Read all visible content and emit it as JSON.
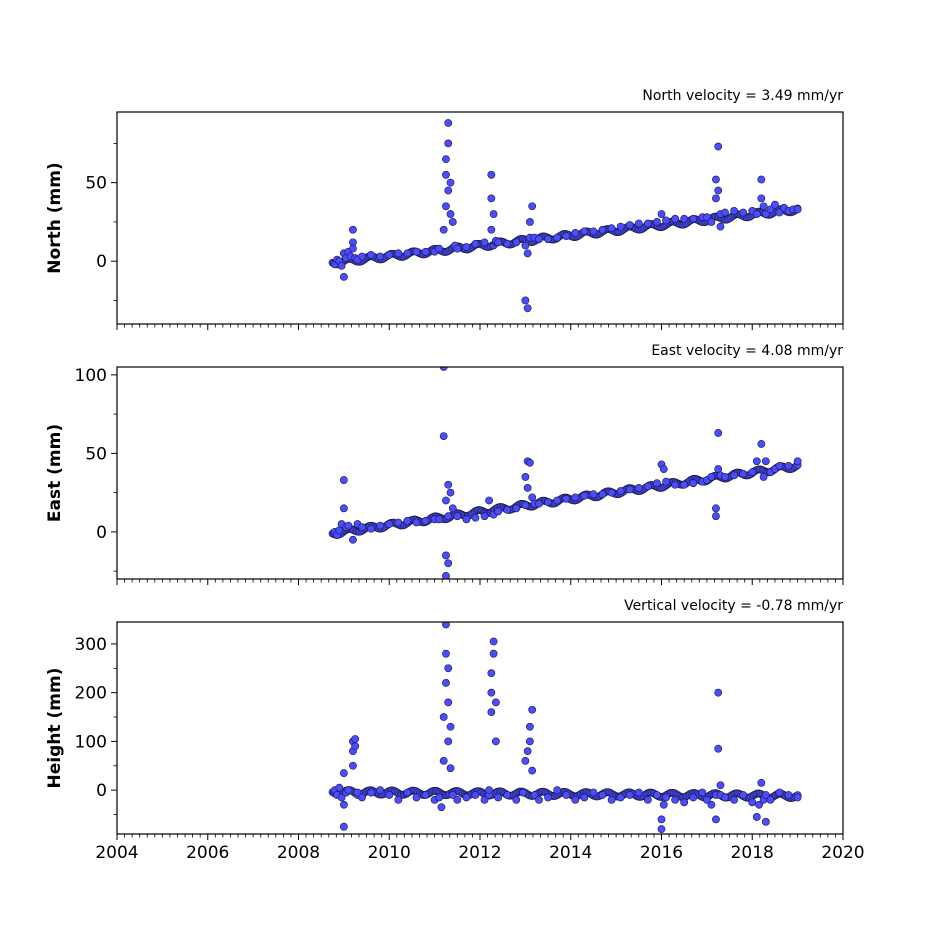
{
  "chart_data": [
    {
      "type": "scatter",
      "subtitle": "North velocity = 3.49 mm/yr",
      "ylabel": "North (mm)",
      "xlim": [
        2004,
        2020
      ],
      "ylim": [
        -40,
        95
      ],
      "yticks": [
        0,
        50
      ],
      "xticks": [
        2004,
        2006,
        2008,
        2010,
        2012,
        2014,
        2016,
        2018,
        2020
      ],
      "show_xtick_labels": false,
      "series": [
        {
          "color": "#4b4bff",
          "edge_color": "#1a1a40",
          "trend": {
            "x": [
              2008.75,
              2019.0
            ],
            "y": [
              -1,
              33
            ]
          },
          "x": [
            2008.8,
            2008.85,
            2008.9,
            2008.95,
            2009.0,
            2009.0,
            2009.05,
            2009.1,
            2009.15,
            2009.2,
            2009.2,
            2009.2,
            2009.25,
            2009.3,
            2009.4,
            2009.6,
            2009.8,
            2010.0,
            2010.2,
            2010.4,
            2010.6,
            2010.8,
            2011.0,
            2011.1,
            2011.2,
            2011.25,
            2011.25,
            2011.25,
            2011.3,
            2011.3,
            2011.3,
            2011.35,
            2011.35,
            2011.4,
            2011.45,
            2011.5,
            2011.7,
            2011.9,
            2012.1,
            2012.25,
            2012.25,
            2012.25,
            2012.3,
            2012.3,
            2012.35,
            2012.35,
            2012.4,
            2012.6,
            2012.8,
            2013.0,
            2013.0,
            2013.05,
            2013.05,
            2013.1,
            2013.1,
            2013.15,
            2013.2,
            2013.3,
            2013.5,
            2013.7,
            2013.9,
            2014.1,
            2014.3,
            2014.5,
            2014.7,
            2014.9,
            2015.1,
            2015.3,
            2015.5,
            2015.7,
            2015.9,
            2016.0,
            2016.1,
            2016.3,
            2016.5,
            2016.7,
            2016.9,
            2017.0,
            2017.1,
            2017.2,
            2017.2,
            2017.25,
            2017.25,
            2017.3,
            2017.3,
            2017.4,
            2017.6,
            2017.8,
            2018.0,
            2018.1,
            2018.2,
            2018.2,
            2018.25,
            2018.3,
            2018.4,
            2018.5,
            2018.6,
            2018.7,
            2018.8,
            2018.9,
            2019.0
          ],
          "y": [
            -2,
            1,
            0,
            -3,
            5,
            -10,
            2,
            6,
            3,
            12,
            20,
            8,
            2,
            1,
            3,
            4,
            3,
            4,
            5,
            5,
            6,
            6,
            6,
            8,
            20,
            35,
            55,
            65,
            88,
            75,
            45,
            30,
            50,
            25,
            10,
            8,
            9,
            11,
            12,
            20,
            40,
            55,
            30,
            10,
            12,
            13,
            12,
            11,
            12,
            10,
            -25,
            -30,
            5,
            15,
            25,
            35,
            15,
            14,
            14,
            15,
            16,
            18,
            19,
            19,
            20,
            21,
            22,
            23,
            24,
            24,
            25,
            30,
            26,
            27,
            27,
            27,
            28,
            28,
            25,
            52,
            40,
            73,
            45,
            30,
            22,
            31,
            32,
            31,
            32,
            30,
            52,
            40,
            35,
            30,
            33,
            36,
            31,
            34,
            32,
            33,
            33
          ]
        }
      ]
    },
    {
      "type": "scatter",
      "subtitle": "East velocity = 4.08 mm/yr",
      "ylabel": "East (mm)",
      "xlim": [
        2004,
        2020
      ],
      "ylim": [
        -30,
        105
      ],
      "yticks": [
        0,
        50,
        100
      ],
      "xticks": [
        2004,
        2006,
        2008,
        2010,
        2012,
        2014,
        2016,
        2018,
        2020
      ],
      "show_xtick_labels": false,
      "series": [
        {
          "color": "#4b4bff",
          "edge_color": "#1a1a40",
          "trend": {
            "x": [
              2008.75,
              2019.0
            ],
            "y": [
              -1,
              42
            ]
          },
          "x": [
            2008.8,
            2008.85,
            2008.9,
            2008.95,
            2009.0,
            2009.0,
            2009.05,
            2009.1,
            2009.2,
            2009.3,
            2009.4,
            2009.6,
            2009.8,
            2010.0,
            2010.2,
            2010.4,
            2010.6,
            2010.8,
            2011.0,
            2011.1,
            2011.2,
            2011.2,
            2011.25,
            2011.25,
            2011.25,
            2011.3,
            2011.3,
            2011.3,
            2011.35,
            2011.4,
            2011.5,
            2011.7,
            2011.9,
            2012.1,
            2012.2,
            2012.3,
            2012.4,
            2012.6,
            2012.8,
            2013.0,
            2013.0,
            2013.05,
            2013.05,
            2013.1,
            2013.15,
            2013.2,
            2013.3,
            2013.5,
            2013.7,
            2013.9,
            2014.1,
            2014.3,
            2014.5,
            2014.7,
            2014.9,
            2015.1,
            2015.3,
            2015.5,
            2015.7,
            2015.9,
            2016.0,
            2016.05,
            2016.1,
            2016.3,
            2016.5,
            2016.7,
            2016.9,
            2017.0,
            2017.1,
            2017.2,
            2017.2,
            2017.25,
            2017.25,
            2017.3,
            2017.4,
            2017.6,
            2017.8,
            2018.0,
            2018.1,
            2018.2,
            2018.25,
            2018.3,
            2018.4,
            2018.5,
            2018.6,
            2018.8,
            2019.0
          ],
          "y": [
            0,
            -2,
            1,
            5,
            15,
            33,
            3,
            4,
            -5,
            5,
            3,
            2,
            4,
            5,
            6,
            7,
            6,
            7,
            8,
            8,
            61,
            105,
            20,
            -15,
            -28,
            30,
            10,
            -20,
            25,
            15,
            10,
            8,
            9,
            10,
            20,
            11,
            13,
            14,
            15,
            17,
            35,
            45,
            28,
            44,
            22,
            18,
            18,
            19,
            20,
            21,
            22,
            23,
            24,
            24,
            25,
            26,
            27,
            28,
            29,
            31,
            43,
            40,
            32,
            30,
            30,
            31,
            32,
            33,
            35,
            10,
            15,
            63,
            40,
            36,
            35,
            36,
            37,
            38,
            45,
            56,
            35,
            45,
            38,
            40,
            42,
            42,
            45
          ]
        }
      ]
    },
    {
      "type": "scatter",
      "subtitle": "Vertical velocity = -0.78 mm/yr",
      "ylabel": "Height (mm)",
      "xlim": [
        2004,
        2020
      ],
      "ylim": [
        -90,
        345
      ],
      "yticks": [
        0,
        100,
        200,
        300
      ],
      "xticks": [
        2004,
        2006,
        2008,
        2010,
        2012,
        2014,
        2016,
        2018,
        2020
      ],
      "xtick_labels": [
        "2004",
        "2006",
        "2008",
        "2010",
        "2012",
        "2014",
        "2016",
        "2018",
        "2020"
      ],
      "show_xtick_labels": true,
      "series": [
        {
          "color": "#4b4bff",
          "edge_color": "#1a1a40",
          "trend": {
            "x": [
              2008.75,
              2019.0
            ],
            "y": [
              -4,
              -12
            ]
          },
          "x": [
            2008.8,
            2008.85,
            2008.9,
            2008.95,
            2009.0,
            2009.0,
            2009.0,
            2009.05,
            2009.1,
            2009.2,
            2009.2,
            2009.2,
            2009.25,
            2009.25,
            2009.3,
            2009.3,
            2009.4,
            2009.6,
            2009.8,
            2010.0,
            2010.2,
            2010.4,
            2010.6,
            2010.8,
            2011.0,
            2011.1,
            2011.15,
            2011.2,
            2011.2,
            2011.25,
            2011.25,
            2011.25,
            2011.3,
            2011.3,
            2011.3,
            2011.35,
            2011.35,
            2011.4,
            2011.5,
            2011.7,
            2011.9,
            2012.1,
            2012.2,
            2012.2,
            2012.25,
            2012.25,
            2012.25,
            2012.3,
            2012.3,
            2012.35,
            2012.35,
            2012.4,
            2012.6,
            2012.8,
            2012.95,
            2013.0,
            2013.05,
            2013.1,
            2013.1,
            2013.15,
            2013.15,
            2013.2,
            2013.3,
            2013.5,
            2013.7,
            2013.9,
            2014.1,
            2014.3,
            2014.5,
            2014.7,
            2014.9,
            2015.1,
            2015.3,
            2015.5,
            2015.7,
            2015.9,
            2016.0,
            2016.0,
            2016.05,
            2016.1,
            2016.3,
            2016.5,
            2016.7,
            2016.9,
            2017.0,
            2017.1,
            2017.2,
            2017.2,
            2017.25,
            2017.25,
            2017.3,
            2017.3,
            2017.4,
            2017.6,
            2017.8,
            2018.0,
            2018.1,
            2018.15,
            2018.2,
            2018.25,
            2018.3,
            2018.3,
            2018.4,
            2018.6,
            2018.8,
            2019.0
          ],
          "y": [
            0,
            -10,
            5,
            -15,
            -30,
            -75,
            35,
            -5,
            0,
            50,
            80,
            100,
            90,
            105,
            -10,
            -5,
            -15,
            -5,
            0,
            -10,
            -20,
            -5,
            -15,
            -10,
            -20,
            -15,
            -35,
            60,
            150,
            220,
            280,
            340,
            250,
            100,
            180,
            130,
            45,
            -10,
            -20,
            -15,
            -10,
            -20,
            -10,
            0,
            160,
            200,
            240,
            305,
            280,
            180,
            100,
            -15,
            -10,
            -20,
            -5,
            60,
            80,
            100,
            130,
            165,
            40,
            -10,
            -20,
            -15,
            0,
            -10,
            -20,
            -15,
            -5,
            -10,
            -20,
            -15,
            -10,
            -5,
            -20,
            -10,
            -60,
            -80,
            -30,
            -15,
            -20,
            -25,
            -15,
            -5,
            -20,
            -30,
            -60,
            -10,
            85,
            200,
            10,
            -10,
            -15,
            -20,
            -10,
            -25,
            -55,
            -30,
            15,
            -20,
            -65,
            -10,
            -20,
            -5,
            -10,
            -15
          ]
        }
      ]
    }
  ]
}
